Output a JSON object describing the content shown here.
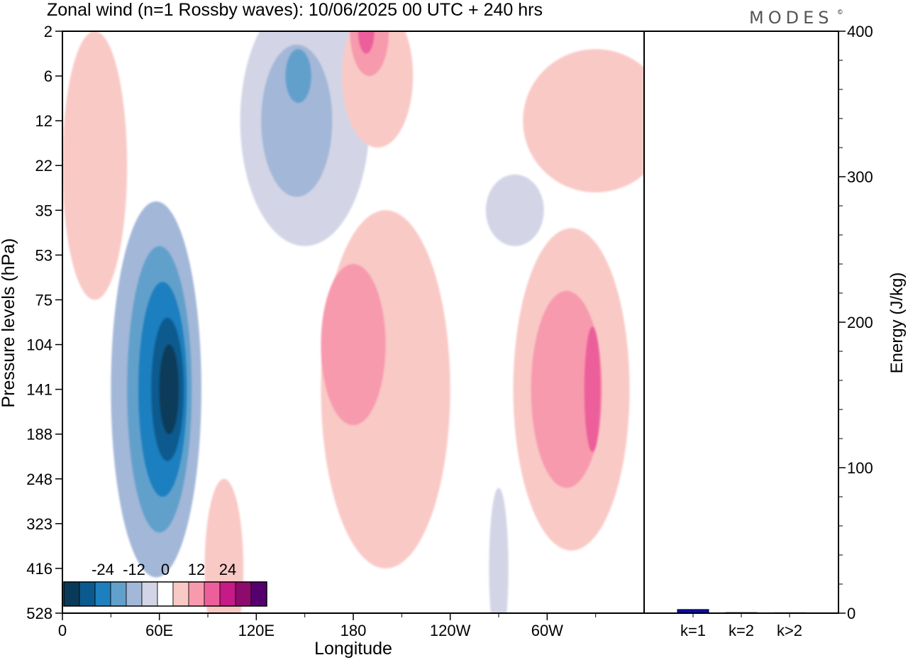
{
  "title": "Zonal wind (n=1 Rossby waves):  10/06/2025  00 UTC  + 240 hrs",
  "brand": "MODES",
  "brand_mark": "©",
  "colors": {
    "levels": [
      "#0a3a5a",
      "#0a5a8e",
      "#1e7fbf",
      "#62a0cc",
      "#a3b7d8",
      "#d3d5e6",
      "#ffffff",
      "#f9c9c6",
      "#f79aae",
      "#ec5f9a",
      "#c61a86",
      "#8e0a6e",
      "#560070"
    ],
    "energy_bar": "#0b0bb5"
  },
  "chart_data": [
    {
      "type": "heatmap",
      "title": "Zonal wind (n=1 Rossby waves):  10/06/2025  00 UTC  + 240 hrs",
      "xlabel": "Longitude",
      "ylabel": "Pressure levels (hPa)",
      "x_ticks": [
        "0",
        "60E",
        "120E",
        "180",
        "120W",
        "60W"
      ],
      "x_tick_degrees": [
        0,
        60,
        120,
        180,
        240,
        300
      ],
      "xlim": [
        0,
        360
      ],
      "y_ticks": [
        "2",
        "6",
        "12",
        "22",
        "35",
        "53",
        "75",
        "104",
        "141",
        "188",
        "248",
        "323",
        "416",
        "528"
      ],
      "colorbar": {
        "tick_labels": [
          "-24",
          "-12",
          "0",
          "12",
          "24"
        ],
        "tick_values": [
          -24,
          -12,
          0,
          12,
          24
        ],
        "bins": [
          -30,
          -24,
          -18,
          -12,
          -6,
          -3,
          3,
          6,
          12,
          18,
          24,
          30
        ]
      },
      "contours": [
        {
          "value": -6,
          "cx": 58,
          "level": "141",
          "rx": 28,
          "ry": 4.2
        },
        {
          "value": -12,
          "cx": 60,
          "level": "141",
          "rx": 20,
          "ry": 3.2
        },
        {
          "value": -18,
          "cx": 62,
          "level": "141",
          "rx": 15,
          "ry": 2.4
        },
        {
          "value": -24,
          "cx": 65,
          "level": "141",
          "rx": 10,
          "ry": 1.6
        },
        {
          "value": -30,
          "cx": 66,
          "level": "141",
          "rx": 6,
          "ry": 1.0
        },
        {
          "value": -3,
          "cx": 150,
          "level": "12",
          "rx": 40,
          "ry": 2.8
        },
        {
          "value": -6,
          "cx": 145,
          "level": "12",
          "rx": 22,
          "ry": 1.7
        },
        {
          "value": -12,
          "cx": 146,
          "level": "6",
          "rx": 8,
          "ry": 0.6
        },
        {
          "value": 3,
          "cx": 200,
          "level": "141",
          "rx": 40,
          "ry": 4.0
        },
        {
          "value": 6,
          "cx": 180,
          "level": "104",
          "rx": 20,
          "ry": 1.8
        },
        {
          "value": 3,
          "cx": 315,
          "level": "141",
          "rx": 36,
          "ry": 3.6
        },
        {
          "value": 6,
          "cx": 312,
          "level": "141",
          "rx": 22,
          "ry": 2.2
        },
        {
          "value": 12,
          "cx": 328,
          "level": "141",
          "rx": 5,
          "ry": 1.4
        },
        {
          "value": 3,
          "cx": 195,
          "level": "6",
          "rx": 22,
          "ry": 1.6
        },
        {
          "value": 6,
          "cx": 190,
          "level": "2",
          "rx": 12,
          "ry": 1.0
        },
        {
          "value": 12,
          "cx": 188,
          "level": "2",
          "rx": 5,
          "ry": 0.5
        },
        {
          "value": 3,
          "cx": 20,
          "level": "22",
          "rx": 20,
          "ry": 3.0
        },
        {
          "value": 3,
          "cx": 330,
          "level": "12",
          "rx": 45,
          "ry": 1.6
        },
        {
          "value": 3,
          "cx": 100,
          "level": "416",
          "rx": 12,
          "ry": 2.0
        },
        {
          "value": -3,
          "cx": 280,
          "level": "35",
          "rx": 18,
          "ry": 0.8
        },
        {
          "value": -3,
          "cx": 270,
          "level": "416",
          "rx": 6,
          "ry": 1.8
        }
      ]
    },
    {
      "type": "bar",
      "ylabel": "Energy (J/kg)",
      "ylim": [
        0,
        400
      ],
      "y_ticks": [
        0,
        100,
        200,
        300,
        400
      ],
      "categories": [
        "k=1",
        "k=2",
        "k>2"
      ],
      "values": [
        2.5,
        0.4,
        0.3
      ]
    }
  ]
}
